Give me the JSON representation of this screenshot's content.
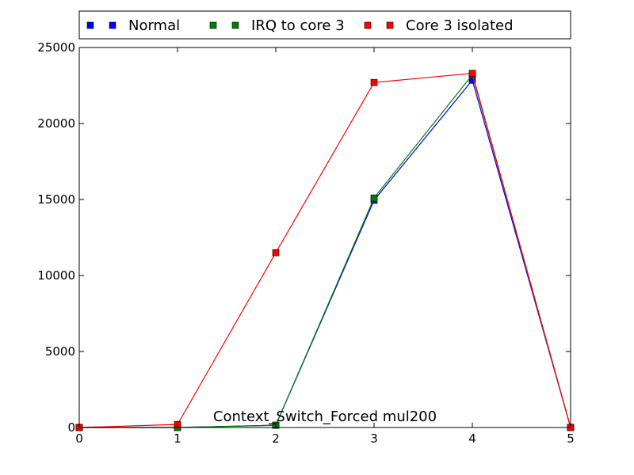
{
  "chart_data": {
    "type": "line",
    "title": "",
    "xlabel": "",
    "ylabel": "",
    "annotation": "Context_Switch_Forced mul200",
    "x": [
      0,
      1,
      2,
      3,
      4,
      5
    ],
    "xlim": [
      0,
      5
    ],
    "ylim": [
      0,
      25000
    ],
    "xticks": [
      "0",
      "1",
      "2",
      "3",
      "4",
      "5"
    ],
    "yticks": [
      "0",
      "5000",
      "10000",
      "15000",
      "20000",
      "25000"
    ],
    "grid": false,
    "legend_position": "top",
    "series": [
      {
        "name": "Normal",
        "color": "#0000ff",
        "values": [
          0,
          0,
          150,
          14950,
          22850,
          0
        ]
      },
      {
        "name": "IRQ to core 3",
        "color": "#008000",
        "values": [
          0,
          0,
          150,
          15100,
          23200,
          0
        ]
      },
      {
        "name": "Core 3 isolated",
        "color": "#ff0000",
        "values": [
          0,
          200,
          11500,
          22700,
          23300,
          0
        ]
      }
    ]
  }
}
